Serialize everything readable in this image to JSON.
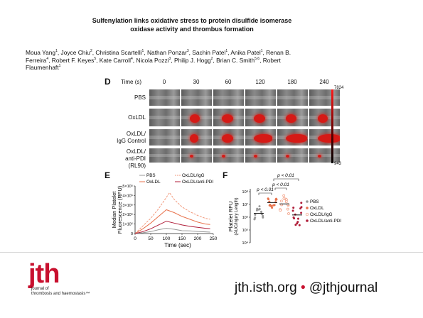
{
  "title": {
    "line1": "Sulfenylation links oxidative stress to protein disulfide isomerase",
    "line2": "oxidase activity and thrombus formation"
  },
  "authors": [
    {
      "name": "Moua Yang",
      "aff": "1"
    },
    {
      "name": "Joyce Chiu",
      "aff": "2"
    },
    {
      "name": "Christina Scartelli",
      "aff": "1"
    },
    {
      "name": "Nathan Ponzar",
      "aff": "3"
    },
    {
      "name": "Sachin Patel",
      "aff": "1"
    },
    {
      "name": "Anika Patel",
      "aff": "1"
    },
    {
      "name": "Renan B. Ferreira",
      "aff": "4"
    },
    {
      "name": "Robert F. Keyes",
      "aff": "5"
    },
    {
      "name": "Kate Carroll",
      "aff": "4"
    },
    {
      "name": "Nicola Pozzi",
      "aff": "3"
    },
    {
      "name": "Philip J. Hogg",
      "aff": "2"
    },
    {
      "name": "Brian C. Smith",
      "aff": "5,6"
    },
    {
      "name": "Robert Flaumenhaft",
      "aff": "1"
    }
  ],
  "panelD": {
    "label": "D",
    "time_label": "Time (s)",
    "timepoints": [
      "0",
      "30",
      "60",
      "120",
      "180",
      "240"
    ],
    "rows": [
      {
        "line1": "PBS",
        "line2": ""
      },
      {
        "line1": "OxLDL",
        "line2": ""
      },
      {
        "line1": "OxLDL/",
        "line2": "IgG Control"
      },
      {
        "line1": "OxLDL/",
        "line2": "anti-PDI (RL90)"
      }
    ],
    "scale_max": "7824",
    "scale_min": "943",
    "colors": {
      "thrombus": "#d51a16"
    }
  },
  "panelE": {
    "label": "E",
    "legend": [
      "PBS",
      "OxLDL/IgG",
      "OxLDL",
      "OxLDL/anti-PDI"
    ],
    "ylabel_line1": "Median Platelet",
    "ylabel_line2": "Fluorescence (RFU)",
    "xlabel": "Time (sec)",
    "yticks": [
      "0",
      "1×10⁵",
      "2×10⁵",
      "3×10⁵",
      "4×10⁵",
      "5×10⁵"
    ],
    "xticks": [
      "0",
      "50",
      "100",
      "150",
      "200",
      "250"
    ]
  },
  "panelF": {
    "label": "F",
    "pvalue_top": "p < 0.01",
    "pvalue_left": "p < 0.01",
    "pvalue_mid": "p < 0.01",
    "ylabel_line1": "Platelet RFU",
    "ylabel_line2": "(AUC/Injury Length)",
    "yticks": [
      "10⁸",
      "10⁷",
      "10⁶",
      "10⁵",
      "10⁴"
    ],
    "legend": [
      "PBS",
      "OxLDL",
      "OxLDL/IgG",
      "OxLDL/anti-PDI"
    ]
  },
  "chart_data": [
    {
      "type": "line",
      "xlabel": "Time (sec)",
      "ylabel": "Median Platelet Fluorescence (RFU)",
      "xlim": [
        0,
        250
      ],
      "ylim": [
        0,
        500000
      ],
      "series": [
        {
          "name": "PBS",
          "color": "#999999",
          "x": [
            0,
            25,
            50,
            75,
            100,
            125,
            150,
            175,
            200,
            225,
            240
          ],
          "y": [
            0,
            8000,
            20000,
            40000,
            55000,
            45000,
            30000,
            28000,
            22000,
            18000,
            15000
          ]
        },
        {
          "name": "OxLDL/IgG",
          "color": "#f29b7e",
          "x": [
            0,
            25,
            50,
            75,
            100,
            110,
            125,
            150,
            175,
            200,
            225,
            240
          ],
          "y": [
            0,
            80000,
            160000,
            260000,
            380000,
            430000,
            360000,
            280000,
            230000,
            190000,
            160000,
            150000
          ]
        },
        {
          "name": "OxLDL",
          "color": "#e8734d",
          "x": [
            0,
            25,
            50,
            75,
            100,
            125,
            150,
            175,
            200,
            225,
            240
          ],
          "y": [
            0,
            50000,
            110000,
            180000,
            250000,
            220000,
            180000,
            150000,
            120000,
            100000,
            95000
          ]
        },
        {
          "name": "OxLDL/anti-PDI",
          "color": "#b01e3a",
          "x": [
            0,
            25,
            50,
            75,
            100,
            125,
            150,
            175,
            200,
            225,
            240
          ],
          "y": [
            0,
            20000,
            50000,
            90000,
            130000,
            110000,
            90000,
            75000,
            65000,
            55000,
            50000
          ]
        }
      ]
    },
    {
      "type": "scatter",
      "ylabel": "Platelet RFU (AUC/Injury Length)",
      "yscale": "log",
      "ylim": [
        10000,
        100000000
      ],
      "series": [
        {
          "name": "PBS",
          "color": "#999999",
          "median": 2000000
        },
        {
          "name": "OxLDL",
          "color": "#e8734d",
          "median": 14000000
        },
        {
          "name": "OxLDL/IgG",
          "color": "#f29b7e",
          "median": 11000000
        },
        {
          "name": "OxLDL/anti-PDI",
          "color": "#b01e3a",
          "median": 1500000
        }
      ]
    }
  ],
  "footer": {
    "logo_text": "jth",
    "logo_sub1": "journal of",
    "logo_sub2": "thrombosis and haemostasis™",
    "link_a": "jth.isth.org",
    "separator": "•",
    "link_b": "@jthjournal",
    "brand_color": "#c8102e"
  }
}
